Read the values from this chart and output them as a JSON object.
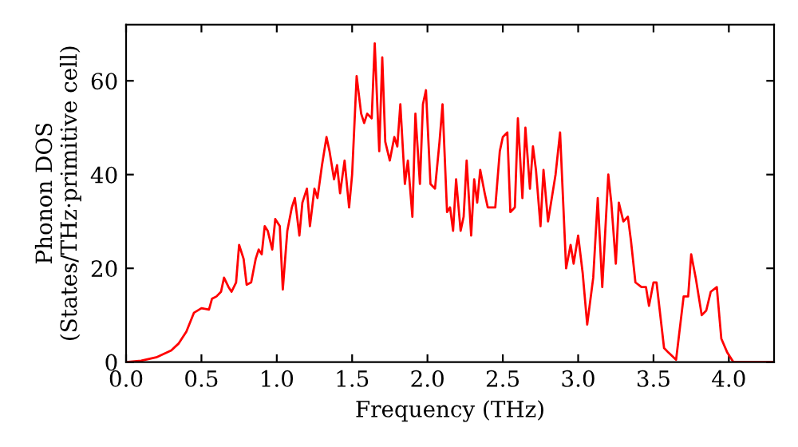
{
  "chart_data": {
    "type": "line",
    "xlabel": "Frequency (THz)",
    "ylabel": "Phonon DOS\n(States/THz·primitive cell)",
    "xlim": [
      0.0,
      4.3
    ],
    "ylim": [
      0,
      72
    ],
    "xticks": [
      {
        "value": 0,
        "label": "0.0"
      },
      {
        "value": 0.5,
        "label": "0.5"
      },
      {
        "value": 1,
        "label": "1.0"
      },
      {
        "value": 1.5,
        "label": "1.5"
      },
      {
        "value": 2,
        "label": "2.0"
      },
      {
        "value": 2.5,
        "label": "2.5"
      },
      {
        "value": 3,
        "label": "3.0"
      },
      {
        "value": 3.5,
        "label": "3.5"
      },
      {
        "value": 4,
        "label": "4.0"
      }
    ],
    "yticks": [
      0,
      20,
      40,
      60
    ],
    "grid": false,
    "marker": "none",
    "line_style": "solid",
    "series": [
      {
        "color": "#ff0000",
        "x": [
          0.0,
          0.1,
          0.2,
          0.3,
          0.35,
          0.4,
          0.45,
          0.5,
          0.55,
          0.57,
          0.6,
          0.63,
          0.65,
          0.68,
          0.7,
          0.73,
          0.75,
          0.78,
          0.8,
          0.83,
          0.86,
          0.88,
          0.9,
          0.92,
          0.94,
          0.97,
          0.99,
          1.02,
          1.04,
          1.07,
          1.1,
          1.12,
          1.15,
          1.17,
          1.2,
          1.22,
          1.25,
          1.27,
          1.3,
          1.33,
          1.35,
          1.38,
          1.4,
          1.42,
          1.45,
          1.48,
          1.5,
          1.53,
          1.56,
          1.58,
          1.6,
          1.63,
          1.65,
          1.68,
          1.7,
          1.72,
          1.75,
          1.78,
          1.8,
          1.82,
          1.85,
          1.87,
          1.9,
          1.92,
          1.95,
          1.97,
          1.99,
          2.02,
          2.05,
          2.08,
          2.1,
          2.13,
          2.15,
          2.17,
          2.19,
          2.22,
          2.24,
          2.26,
          2.29,
          2.31,
          2.33,
          2.35,
          2.38,
          2.4,
          2.45,
          2.48,
          2.5,
          2.53,
          2.55,
          2.58,
          2.6,
          2.63,
          2.65,
          2.68,
          2.7,
          2.72,
          2.75,
          2.77,
          2.8,
          2.85,
          2.88,
          2.92,
          2.95,
          2.97,
          3.0,
          3.03,
          3.06,
          3.1,
          3.13,
          3.16,
          3.2,
          3.22,
          3.25,
          3.27,
          3.3,
          3.33,
          3.35,
          3.38,
          3.42,
          3.45,
          3.47,
          3.5,
          3.52,
          3.57,
          3.6,
          3.65,
          3.7,
          3.73,
          3.75,
          3.78,
          3.82,
          3.85,
          3.88,
          3.92,
          3.95,
          3.99,
          4.03,
          4.3
        ],
        "values": [
          0,
          0.3,
          1,
          2.5,
          4,
          6.5,
          10.5,
          11.5,
          11.2,
          13.5,
          14,
          15,
          18,
          16,
          15,
          17,
          25,
          22,
          16.5,
          17,
          22,
          24,
          23,
          29,
          28,
          24,
          30.5,
          29,
          15.5,
          28,
          33,
          35,
          27,
          34,
          37,
          29,
          37,
          35,
          42,
          48,
          45,
          39,
          42,
          36,
          43,
          33,
          40,
          61,
          53,
          51,
          53,
          52,
          68,
          45,
          65,
          47,
          43,
          48,
          46,
          55,
          38,
          43,
          31,
          53,
          38,
          55,
          58,
          38,
          37,
          47,
          55,
          32,
          33,
          28,
          39,
          28,
          31,
          43,
          27,
          39,
          34,
          41,
          36,
          33,
          33,
          45,
          48,
          49,
          32,
          33,
          52,
          35,
          50,
          37,
          46,
          41,
          29,
          41,
          30,
          40,
          49,
          20,
          25,
          21,
          27,
          19,
          8,
          18,
          35,
          16,
          40,
          34,
          21,
          34,
          30,
          31,
          26,
          17,
          16,
          16,
          12,
          17,
          17,
          3,
          2,
          0.5,
          14,
          14,
          23,
          18,
          10,
          11,
          15,
          16,
          5,
          2,
          0,
          0
        ]
      }
    ]
  }
}
